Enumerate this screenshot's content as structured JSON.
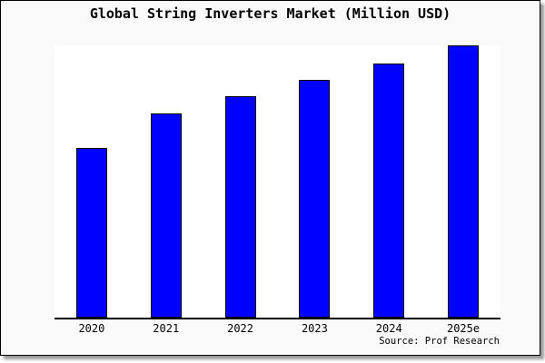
{
  "header": {
    "title": "Global String Inverters Market (Million USD)"
  },
  "footer": {
    "source_note": "Source: Prof Research"
  },
  "colors": {
    "panel_background": "#fafafa",
    "plot_background": "#ffffff",
    "bar_fill": "#0000ff",
    "bar_border": "#000000",
    "axis_line": "#000000",
    "shadow": "#9a9a9a"
  },
  "chart_data": {
    "type": "bar",
    "title": "Global String Inverters Market (Million USD)",
    "categories": [
      "2020",
      "2021",
      "2022",
      "2023",
      "2024",
      "2025e"
    ],
    "values": [
      62.5,
      75,
      81.5,
      87.5,
      93.5,
      100
    ],
    "xlabel": "",
    "ylabel": "",
    "ylim": [
      0,
      100
    ],
    "value_scale_note": "relative heights (no y-axis labels shown in image)",
    "grid": false,
    "legend_position": "none",
    "bar_color": "#0000ff",
    "source_note": "Source: Prof Research"
  }
}
